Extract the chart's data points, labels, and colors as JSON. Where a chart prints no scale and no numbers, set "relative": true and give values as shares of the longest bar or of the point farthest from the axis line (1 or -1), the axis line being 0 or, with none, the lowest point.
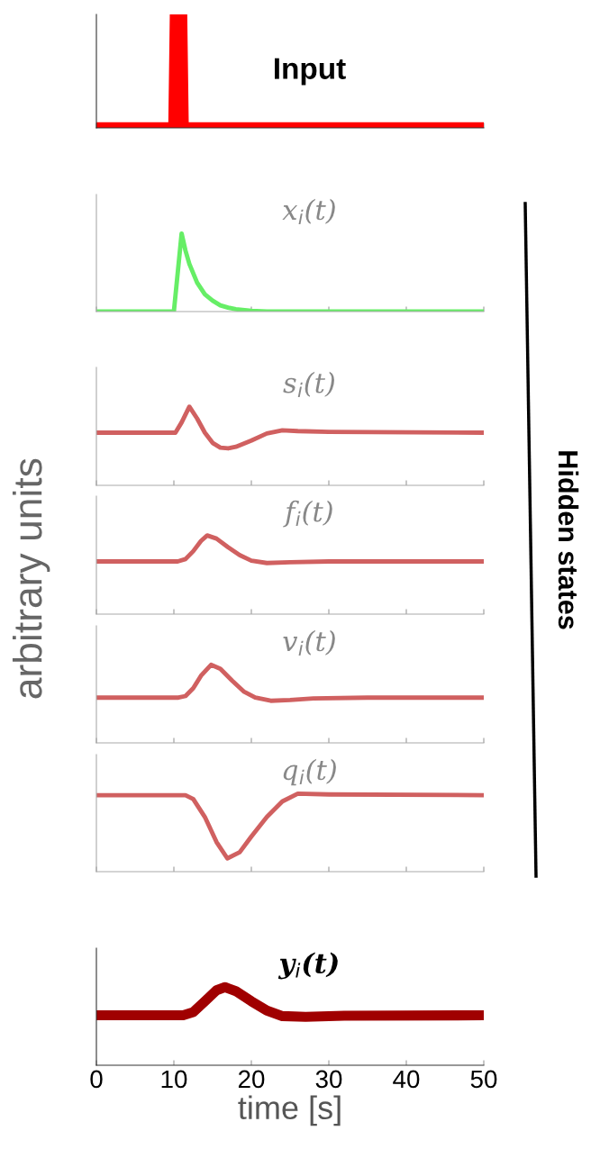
{
  "chart_data": [
    {
      "type": "line",
      "title": "Input",
      "relative": true,
      "xlim": [
        0,
        50
      ],
      "xticks": [
        0,
        10,
        20,
        30,
        40,
        50
      ],
      "tick_labels": false,
      "grid": false,
      "legend": false,
      "series": [
        {
          "color": "#ff0000",
          "x": [
            0,
            10,
            10.2,
            11,
            11.2,
            50
          ],
          "values": [
            0,
            0,
            1,
            1,
            0,
            0
          ]
        }
      ]
    },
    {
      "type": "line",
      "title": "x$_{i}$(t)",
      "relative": true,
      "xlim": [
        0,
        50
      ],
      "xticks": [
        0,
        10,
        20,
        30,
        40,
        50
      ],
      "tick_labels": false,
      "grid": false,
      "legend": false,
      "annotations": [
        "Hidden states"
      ],
      "series": [
        {
          "color": "#66ee66",
          "x": [
            0,
            10,
            11,
            11.5,
            12,
            13,
            14,
            15,
            16,
            17,
            18,
            20,
            22,
            50
          ],
          "values": [
            0,
            0,
            1,
            0.78,
            0.61,
            0.37,
            0.22,
            0.14,
            0.08,
            0.05,
            0.03,
            0.01,
            0,
            0
          ]
        }
      ]
    },
    {
      "type": "line",
      "title": "s$_{i}$(t)",
      "relative": true,
      "xlim": [
        0,
        50
      ],
      "xticks": [
        0,
        10,
        20,
        30,
        40,
        50
      ],
      "tick_labels": false,
      "grid": false,
      "legend": false,
      "series": [
        {
          "color": "#d06060",
          "x": [
            0,
            10.2,
            11,
            12,
            13,
            14,
            15,
            16,
            17,
            18,
            20,
            22,
            24,
            26,
            30,
            50
          ],
          "values": [
            0.67,
            0.67,
            0.8,
            1,
            0.85,
            0.67,
            0.54,
            0.48,
            0.47,
            0.49,
            0.57,
            0.66,
            0.7,
            0.69,
            0.68,
            0.67
          ]
        }
      ]
    },
    {
      "type": "line",
      "title": "f$_{i}$(t)",
      "ylabel": "arbitrary units",
      "relative": true,
      "xlim": [
        0,
        50
      ],
      "xticks": [
        0,
        10,
        20,
        30,
        40,
        50
      ],
      "tick_labels": false,
      "grid": false,
      "legend": false,
      "series": [
        {
          "color": "#d06060",
          "x": [
            0,
            10.5,
            11.5,
            12.5,
            13.5,
            14.3,
            15.5,
            17,
            18.5,
            20,
            22,
            25,
            30,
            50
          ],
          "values": [
            0.67,
            0.67,
            0.7,
            0.8,
            0.93,
            1,
            0.96,
            0.85,
            0.75,
            0.68,
            0.65,
            0.66,
            0.67,
            0.67
          ]
        }
      ]
    },
    {
      "type": "line",
      "title": "v$_{i}$(t)",
      "relative": true,
      "xlim": [
        0,
        50
      ],
      "xticks": [
        0,
        10,
        20,
        30,
        40,
        50
      ],
      "tick_labels": false,
      "grid": false,
      "legend": false,
      "series": [
        {
          "color": "#d06060",
          "x": [
            0,
            10.6,
            11.5,
            12.5,
            13.5,
            14.8,
            16,
            17.5,
            19,
            20.5,
            22.5,
            25,
            28,
            35,
            50
          ],
          "values": [
            0.58,
            0.58,
            0.6,
            0.7,
            0.86,
            1,
            0.95,
            0.8,
            0.66,
            0.58,
            0.54,
            0.55,
            0.57,
            0.58,
            0.58
          ]
        }
      ]
    },
    {
      "type": "line",
      "title": "q$_{i}$(t)",
      "relative": true,
      "xlim": [
        0,
        50
      ],
      "xticks": [
        0,
        10,
        20,
        30,
        40,
        50
      ],
      "tick_labels": false,
      "grid": false,
      "legend": false,
      "series": [
        {
          "color": "#d06060",
          "x": [
            0,
            11.5,
            12.5,
            14,
            15.5,
            16.9,
            18.5,
            20,
            22,
            24,
            26,
            30,
            50
          ],
          "values": [
            0.98,
            0.98,
            0.93,
            0.7,
            0.38,
            0.17,
            0.25,
            0.45,
            0.7,
            0.9,
            1,
            0.99,
            0.98
          ]
        }
      ]
    },
    {
      "type": "line",
      "title": "y$_{i}$(t)",
      "xlabel": "time [s]",
      "relative": true,
      "xlim": [
        0,
        50
      ],
      "xticks": [
        0,
        10,
        20,
        30,
        40,
        50
      ],
      "tick_labels": "x",
      "grid": false,
      "legend": false,
      "series": [
        {
          "color": "#a00000",
          "x": [
            0,
            11.2,
            12.5,
            14,
            15.5,
            16.6,
            18,
            20,
            22,
            24,
            27,
            32,
            50
          ],
          "values": [
            0.64,
            0.64,
            0.68,
            0.82,
            0.96,
            1,
            0.95,
            0.82,
            0.7,
            0.63,
            0.62,
            0.635,
            0.64
          ]
        }
      ]
    }
  ]
}
